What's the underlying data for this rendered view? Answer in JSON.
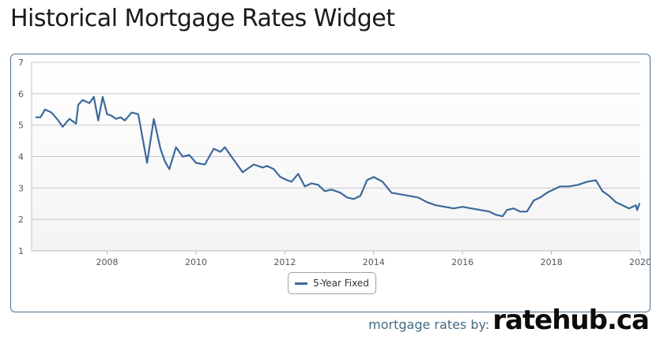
{
  "page": {
    "title": "Historical Mortgage Rates Widget"
  },
  "footer": {
    "prefix": "mortgage rates by:",
    "brand": "ratehub.ca"
  },
  "colors": {
    "series": "#3c6a9b",
    "plot_band": "#f4f4f4",
    "grid": "#c8c8c8",
    "frame": "#4e6f8c"
  },
  "chart_data": {
    "type": "line",
    "title": "",
    "xlabel": "",
    "ylabel": "",
    "xlim": [
      2006.3,
      2020.0
    ],
    "ylim": [
      1,
      7
    ],
    "x_ticks": [
      2008,
      2010,
      2012,
      2014,
      2016,
      2018,
      2020
    ],
    "x_tick_labels": [
      "2008",
      "2010",
      "2012",
      "2014",
      "2016",
      "2018",
      "2020"
    ],
    "y_ticks": [
      1,
      2,
      3,
      4,
      5,
      6,
      7
    ],
    "y_tick_labels": [
      "1",
      "2",
      "3",
      "4",
      "5",
      "6",
      "7"
    ],
    "grid": true,
    "legend_position": "bottom-center",
    "series": [
      {
        "name": "5-Year Fixed",
        "x": [
          2006.4,
          2006.5,
          2006.6,
          2006.75,
          2006.9,
          2007.0,
          2007.15,
          2007.3,
          2007.35,
          2007.45,
          2007.6,
          2007.7,
          2007.8,
          2007.9,
          2008.0,
          2008.1,
          2008.2,
          2008.3,
          2008.4,
          2008.55,
          2008.7,
          2008.9,
          2009.05,
          2009.2,
          2009.3,
          2009.4,
          2009.55,
          2009.7,
          2009.85,
          2010.0,
          2010.2,
          2010.4,
          2010.55,
          2010.65,
          2010.9,
          2011.05,
          2011.3,
          2011.5,
          2011.6,
          2011.75,
          2011.9,
          2012.05,
          2012.15,
          2012.3,
          2012.45,
          2012.6,
          2012.75,
          2012.9,
          2013.05,
          2013.25,
          2013.4,
          2013.55,
          2013.7,
          2013.85,
          2014.0,
          2014.2,
          2014.4,
          2014.6,
          2014.8,
          2015.0,
          2015.2,
          2015.4,
          2015.6,
          2015.8,
          2016.0,
          2016.2,
          2016.4,
          2016.6,
          2016.75,
          2016.9,
          2017.0,
          2017.15,
          2017.3,
          2017.45,
          2017.6,
          2017.75,
          2017.9,
          2018.05,
          2018.2,
          2018.4,
          2018.6,
          2018.8,
          2019.0,
          2019.15,
          2019.3,
          2019.45,
          2019.6,
          2019.75,
          2019.9,
          2019.93,
          2019.98
        ],
        "values": [
          5.25,
          5.25,
          5.5,
          5.4,
          5.15,
          4.95,
          5.2,
          5.05,
          5.65,
          5.8,
          5.7,
          5.9,
          5.15,
          5.9,
          5.35,
          5.3,
          5.2,
          5.25,
          5.15,
          5.4,
          5.35,
          3.8,
          5.2,
          4.25,
          3.85,
          3.6,
          4.3,
          4.0,
          4.05,
          3.8,
          3.75,
          4.25,
          4.15,
          4.3,
          3.8,
          3.5,
          3.75,
          3.65,
          3.7,
          3.6,
          3.35,
          3.25,
          3.2,
          3.45,
          3.05,
          3.15,
          3.1,
          2.9,
          2.95,
          2.85,
          2.7,
          2.65,
          2.75,
          3.25,
          3.35,
          3.2,
          2.85,
          2.8,
          2.75,
          2.7,
          2.55,
          2.45,
          2.4,
          2.35,
          2.4,
          2.35,
          2.3,
          2.25,
          2.15,
          2.1,
          2.3,
          2.35,
          2.25,
          2.25,
          2.6,
          2.7,
          2.85,
          2.95,
          3.05,
          3.05,
          3.1,
          3.2,
          3.25,
          2.9,
          2.75,
          2.55,
          2.45,
          2.35,
          2.45,
          2.3,
          2.5
        ]
      }
    ]
  }
}
